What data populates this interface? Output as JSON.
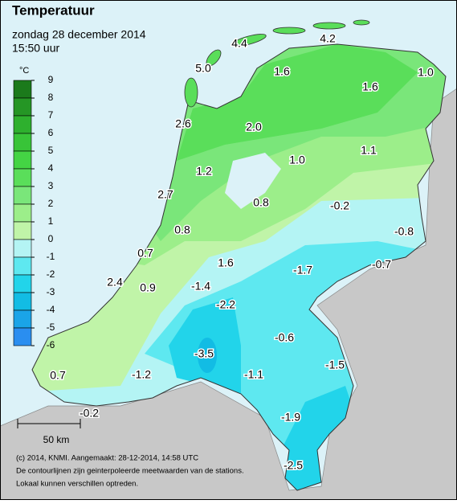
{
  "title": "Temperatuur",
  "subtitle": "zondag 28 december 2014",
  "time": "15:50 uur",
  "legend": {
    "unit": "°C",
    "ticks": [
      9,
      8,
      7,
      6,
      5,
      4,
      3,
      2,
      1,
      0,
      -1,
      -2,
      -3,
      -4,
      -5,
      -6
    ],
    "colors": [
      "#1b7a1b",
      "#259625",
      "#2eb02e",
      "#38c438",
      "#44d444",
      "#5ade5a",
      "#7ae67a",
      "#9cee8a",
      "#c0f4a8",
      "#b4f4f4",
      "#5ee8f0",
      "#22d4ea",
      "#12bce4",
      "#1aa4e8",
      "#2a8ef0"
    ]
  },
  "stations": [
    "4.4",
    "4.2",
    "5.0",
    "1.6",
    "1.6",
    "1.0",
    "2.6",
    "2.0",
    "1.1",
    "1.0",
    "1.2",
    "2.7",
    "0.8",
    "-0.2",
    "-0.8",
    "0.8",
    "0.7",
    "1.6",
    "-1.7",
    "-0.7",
    "2.4",
    "0.9",
    "-1.4",
    "-2.2",
    "-0.6",
    "-3.5",
    "-1.5",
    "-1.2",
    "-1.1",
    "0.7",
    "-1.9",
    "-0.2",
    "-2.5"
  ],
  "scale": "50 km",
  "credits": [
    "(c) 2014, KNMI. Aangemaakt: 28-12-2014, 14:58 UTC",
    "De contourlijnen zijn geinterpoleerde meetwaarden van de stations.",
    "Lokaal kunnen verschillen optreden."
  ]
}
